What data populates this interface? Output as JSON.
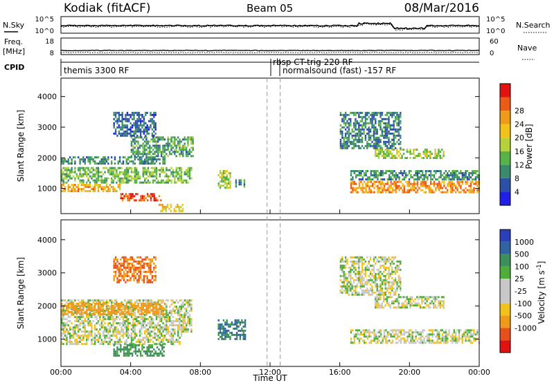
{
  "header": {
    "station": "Kodiak (fitACF)",
    "beam": "Beam 05",
    "date": "08/Mar/2016"
  },
  "left_labels": {
    "nsky": "N.Sky",
    "freq_line1": "Freq.",
    "freq_line2": "[MHz]",
    "cpid": "CPID"
  },
  "right_labels": {
    "nsearch": "N.Search",
    "nave": "Nave"
  },
  "noise_axis": {
    "left_ticks": [
      "10^5",
      "10^0"
    ],
    "right_ticks": [
      "10^5",
      "10^0"
    ]
  },
  "freq_axis": {
    "left_ticks": [
      "18",
      "8"
    ],
    "right_ticks": [
      "60",
      "0"
    ]
  },
  "cpid_labels": {
    "seg1": "themis 3300 RF",
    "seg2": "rbsp CT-trig 220 RF",
    "seg3": "normalsound (fast) -157 RF"
  },
  "x_axis": {
    "title": "Time UT",
    "ticks": [
      "00:00",
      "04:00",
      "08:00",
      "12:00",
      "16:00",
      "20:00",
      "00:00"
    ]
  },
  "y_axis": {
    "title": "Slant Range [km]",
    "ticks": [
      "1000",
      "2000",
      "3000",
      "4000"
    ]
  },
  "power_colorbar": {
    "title": "Power [dB]",
    "ticks": [
      "4",
      "8",
      "12",
      "16",
      "20",
      "24",
      "28"
    ],
    "colors": [
      "#1f1fe8",
      "#2c4fa8",
      "#3a8a6e",
      "#57b345",
      "#b6d23a",
      "#f2c21a",
      "#f09a1a",
      "#ec5a16",
      "#e01212"
    ]
  },
  "velocity_colorbar": {
    "title": "Velocity [m s^-1]",
    "ticks": [
      "1000",
      "500",
      "100",
      "25",
      "-25",
      "-100",
      "-500",
      "-1000"
    ],
    "colors": [
      "#2a3fb8",
      "#2f63a4",
      "#3d8f5c",
      "#4fae3a",
      "#c8c8c8",
      "#c8c8c8",
      "#f2c21a",
      "#f09a1a",
      "#e8501a",
      "#e01212"
    ]
  },
  "markers": {
    "dashed_times_hours": [
      11.83,
      12.58
    ]
  },
  "chart_data": {
    "type": "heatmap",
    "title": "Kodiak (fitACF) Beam 05 08/Mar/2016",
    "xlabel": "Time UT",
    "ylabel": "Slant Range [km]",
    "xlim": [
      0,
      24
    ],
    "ylim": [
      180,
      4600
    ],
    "x_unit": "hours UT",
    "panels": [
      {
        "name": "Power [dB]",
        "range": [
          0,
          30
        ],
        "regions": [
          {
            "t0": 0.0,
            "t1": 3.4,
            "r0": 850,
            "r1": 1150,
            "value": 20
          },
          {
            "t0": 3.4,
            "t1": 5.8,
            "r0": 550,
            "r1": 850,
            "value": 26
          },
          {
            "t0": 5.6,
            "t1": 7.0,
            "r0": 250,
            "r1": 500,
            "value": 18
          },
          {
            "t0": 0.0,
            "t1": 7.5,
            "r0": 1150,
            "r1": 1700,
            "value": 12
          },
          {
            "t0": 0.0,
            "t1": 6.0,
            "r0": 1750,
            "r1": 2050,
            "value": 8
          },
          {
            "t0": 4.0,
            "t1": 7.6,
            "r0": 2000,
            "r1": 2700,
            "value": 10
          },
          {
            "t0": 3.0,
            "t1": 5.5,
            "r0": 2700,
            "r1": 3500,
            "value": 6
          },
          {
            "t0": 9.0,
            "t1": 9.8,
            "r0": 1000,
            "r1": 1600,
            "value": 14
          },
          {
            "t0": 10.0,
            "t1": 10.6,
            "r0": 1000,
            "r1": 1300,
            "value": 8
          },
          {
            "t0": 16.6,
            "t1": 24.0,
            "r0": 850,
            "r1": 1250,
            "value": 22
          },
          {
            "t0": 16.6,
            "t1": 24.0,
            "r0": 1250,
            "r1": 1600,
            "value": 9
          },
          {
            "t0": 18.0,
            "t1": 22.0,
            "r0": 1950,
            "r1": 2300,
            "value": 14
          },
          {
            "t0": 16.0,
            "t1": 19.5,
            "r0": 2300,
            "r1": 3500,
            "value": 8
          }
        ]
      },
      {
        "name": "Velocity [m s^-1]",
        "range": [
          -1000,
          1000
        ],
        "regions": [
          {
            "t0": 0.0,
            "t1": 7.0,
            "r0": 850,
            "r1": 1200,
            "value": 0
          },
          {
            "t0": 3.0,
            "t1": 6.0,
            "r0": 500,
            "r1": 850,
            "value": 80
          },
          {
            "t0": 0.0,
            "t1": 7.5,
            "r0": 1200,
            "r1": 2200,
            "value": 0
          },
          {
            "t0": 0.0,
            "t1": 6.0,
            "r0": 1700,
            "r1": 2100,
            "value": -150
          },
          {
            "t0": 3.0,
            "t1": 5.5,
            "r0": 2700,
            "r1": 3500,
            "value": -300
          },
          {
            "t0": 9.0,
            "t1": 10.6,
            "r0": 1000,
            "r1": 1600,
            "value": 300
          },
          {
            "t0": 16.6,
            "t1": 24.0,
            "r0": 850,
            "r1": 1300,
            "value": 0
          },
          {
            "t0": 18.0,
            "t1": 22.0,
            "r0": 1900,
            "r1": 2300,
            "value": 0
          },
          {
            "t0": 16.0,
            "t1": 19.5,
            "r0": 2300,
            "r1": 3500,
            "value": 0
          }
        ]
      }
    ]
  }
}
